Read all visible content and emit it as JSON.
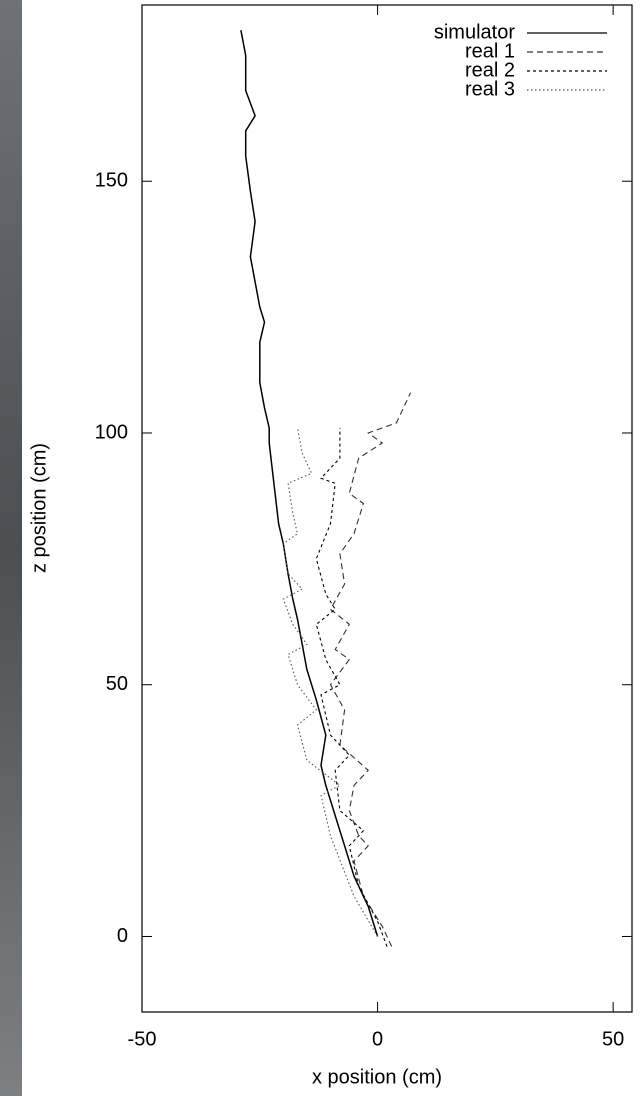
{
  "chart_data": {
    "type": "line",
    "xlabel": "x position (cm)",
    "ylabel": "z position (cm)",
    "xlim": [
      -50,
      54
    ],
    "ylim": [
      -15,
      185
    ],
    "xticks": [
      -50,
      0,
      50
    ],
    "yticks": [
      0,
      50,
      100,
      150
    ],
    "grid": false,
    "legend": "top-right",
    "series": [
      {
        "name": "simulator",
        "color": "#000000",
        "style": "solid",
        "x": [
          0,
          -1,
          -2,
          -3,
          -5,
          -7,
          -9,
          -11,
          -12,
          -11,
          -13,
          -15,
          -16,
          -17,
          -18,
          -19,
          -20,
          -21,
          -22,
          -23,
          -23,
          -24,
          -25,
          -25,
          -25,
          -24,
          -25,
          -26,
          -27,
          -26,
          -27,
          -28,
          -28,
          -26,
          -28,
          -28,
          -29
        ],
        "values": [
          0,
          3,
          6,
          8,
          12,
          18,
          24,
          30,
          34,
          40,
          47,
          53,
          58,
          63,
          67,
          72,
          78,
          82,
          90,
          98,
          101,
          105,
          110,
          113,
          118,
          122,
          125,
          130,
          135,
          142,
          148,
          155,
          160,
          163,
          168,
          175,
          180
        ]
      },
      {
        "name": "real 1",
        "color": "#333333",
        "style": "dashed",
        "x": [
          3,
          1,
          -3,
          -5,
          -2,
          -4,
          -6,
          -5,
          -2,
          -8,
          -7,
          -10,
          -6,
          -9,
          -6,
          -10,
          -7,
          -8,
          -5,
          -3,
          -6,
          -4,
          1,
          -2,
          4,
          6,
          7
        ],
        "values": [
          -2,
          2,
          8,
          15,
          18,
          20,
          25,
          30,
          33,
          38,
          45,
          50,
          55,
          57,
          62,
          65,
          70,
          76,
          80,
          86,
          88,
          95,
          98,
          100,
          102,
          106,
          108
        ]
      },
      {
        "name": "real 2",
        "color": "#000000",
        "style": "dense-dotted",
        "x": [
          2,
          0,
          -4,
          -6,
          -3,
          -8,
          -9,
          -6,
          -10,
          -12,
          -8,
          -11,
          -13,
          -9,
          -11,
          -13,
          -10,
          -9,
          -12,
          -8,
          -8
        ],
        "values": [
          -2,
          3,
          10,
          18,
          21,
          25,
          33,
          36,
          40,
          48,
          50,
          55,
          62,
          65,
          68,
          75,
          82,
          90,
          91,
          95,
          101
        ]
      },
      {
        "name": "real 3",
        "color": "#555555",
        "style": "dotted",
        "x": [
          0,
          -5,
          -10,
          -12,
          -8,
          -15,
          -17,
          -13,
          -17,
          -19,
          -15,
          -18,
          -20,
          -16,
          -19,
          -20,
          -17,
          -18,
          -19,
          -14,
          -16,
          -17
        ],
        "values": [
          0,
          8,
          20,
          28,
          30,
          35,
          42,
          45,
          50,
          56,
          58,
          62,
          67,
          69,
          72,
          78,
          80,
          84,
          90,
          92,
          96,
          101
        ]
      }
    ]
  }
}
